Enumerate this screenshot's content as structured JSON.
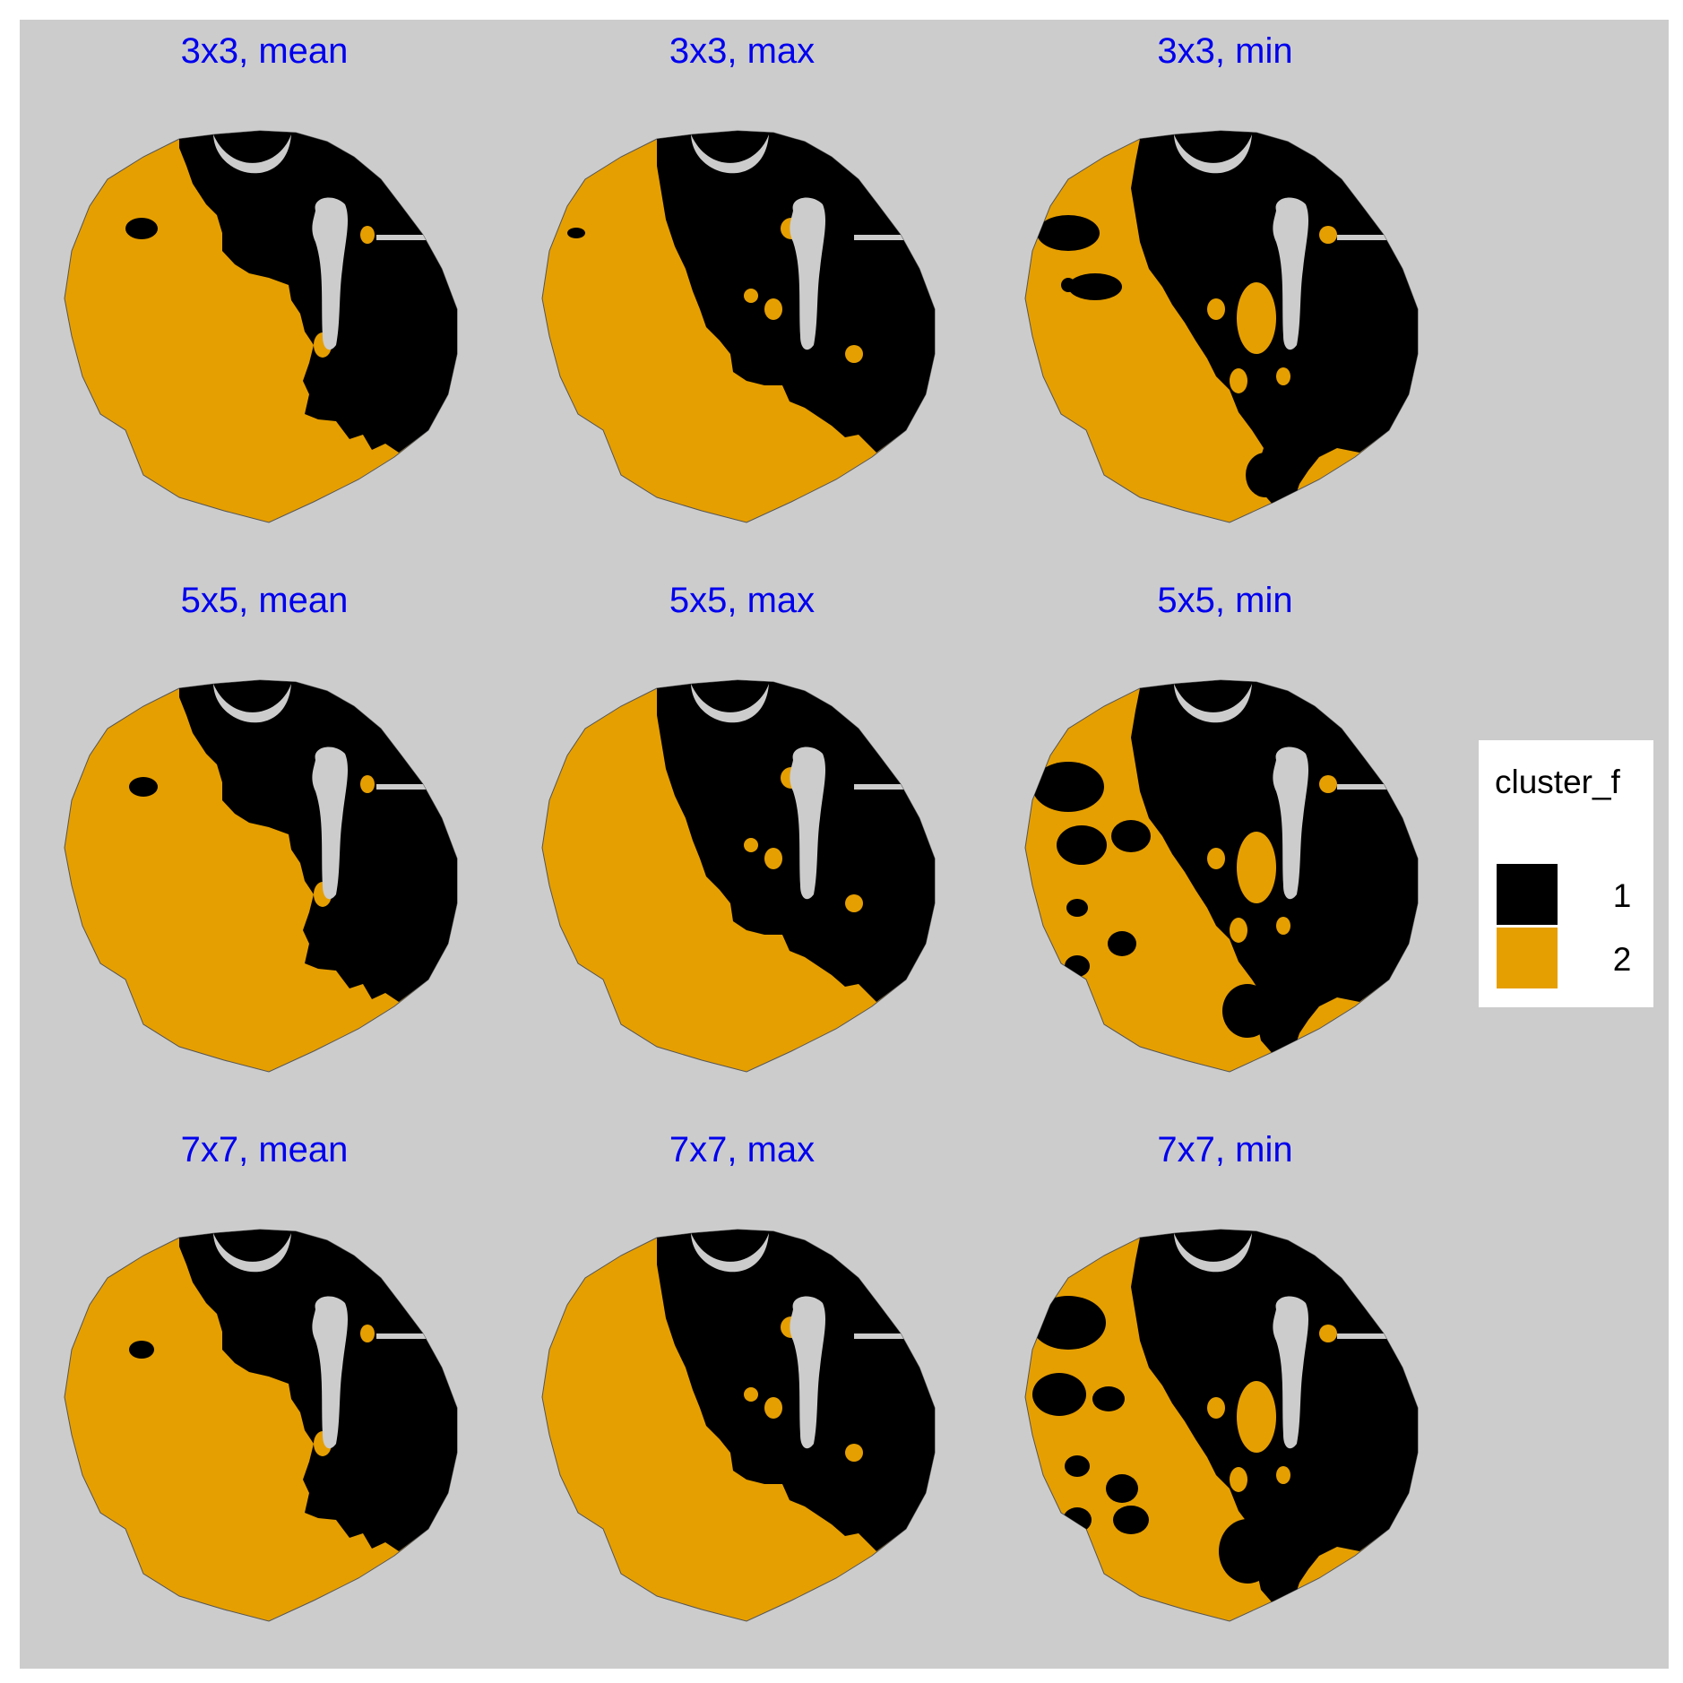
{
  "chart_data": {
    "type": "heatmap",
    "description_note": "",
    "facet_rows": [
      "3x3",
      "5x5",
      "7x7"
    ],
    "facet_cols": [
      "mean",
      "max",
      "min"
    ],
    "panels": [
      {
        "title": "3x3, mean",
        "window": "3x3",
        "fun": "mean",
        "cluster_2_fraction": 0.56
      },
      {
        "title": "3x3, max",
        "window": "3x3",
        "fun": "max",
        "cluster_2_fraction": 0.64
      },
      {
        "title": "3x3, min",
        "window": "3x3",
        "fun": "min",
        "cluster_2_fraction": 0.44
      },
      {
        "title": "5x5, mean",
        "window": "5x5",
        "fun": "mean",
        "cluster_2_fraction": 0.57
      },
      {
        "title": "5x5, max",
        "window": "5x5",
        "fun": "max",
        "cluster_2_fraction": 0.66
      },
      {
        "title": "5x5, min",
        "window": "5x5",
        "fun": "min",
        "cluster_2_fraction": 0.38
      },
      {
        "title": "7x7, mean",
        "window": "7x7",
        "fun": "mean",
        "cluster_2_fraction": 0.58
      },
      {
        "title": "7x7, max",
        "window": "7x7",
        "fun": "max",
        "cluster_2_fraction": 0.68
      },
      {
        "title": "7x7, min",
        "window": "7x7",
        "fun": "min",
        "cluster_2_fraction": 0.34
      }
    ],
    "legend": {
      "title": "cluster_f",
      "position": "right",
      "entries": [
        {
          "label": "1",
          "color": "#000000"
        },
        {
          "label": "2",
          "color": "#E69F00"
        }
      ]
    },
    "grid": false
  },
  "colors": {
    "panel_background": "#CCCCCC",
    "title_color": "#0000EE",
    "outline": "#555555"
  }
}
